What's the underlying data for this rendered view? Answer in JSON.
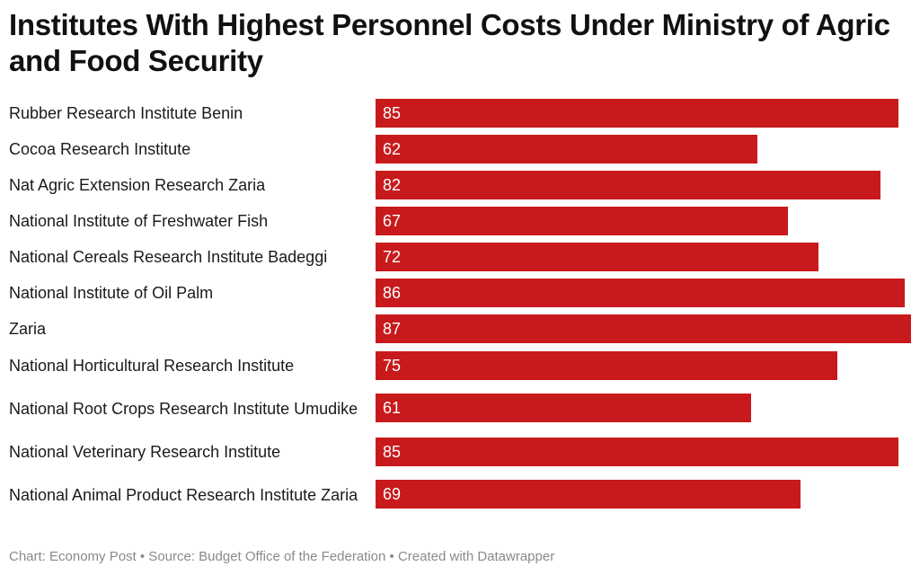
{
  "chart_data": {
    "type": "bar",
    "orientation": "horizontal",
    "title": "Institutes With Highest Personnel Costs Under Ministry of Agric and Food Security",
    "categories": [
      "Rubber Research Institute Benin",
      "Cocoa Research Institute",
      "Nat Agric Extension Research Zaria",
      "National Institute of Freshwater Fish",
      "National Cereals Research Institute Badeggi",
      "National Institute of Oil Palm",
      "Zaria",
      "National Horticultural Research Institute",
      "National Root Crops Research Institute Umudike",
      "National Veterinary Research Institute",
      "National Animal Product Research Institute Zaria"
    ],
    "values": [
      85,
      62,
      82,
      67,
      72,
      86,
      87,
      75,
      61,
      85,
      69
    ],
    "xlim": [
      0,
      87
    ],
    "bar_color": "#c81a1c",
    "value_label_color": "#ffffff",
    "grid": false,
    "legend": "none"
  },
  "footer": {
    "text": "Chart: Economy Post • Source: Budget Office of the Federation • Created with Datawrapper"
  }
}
